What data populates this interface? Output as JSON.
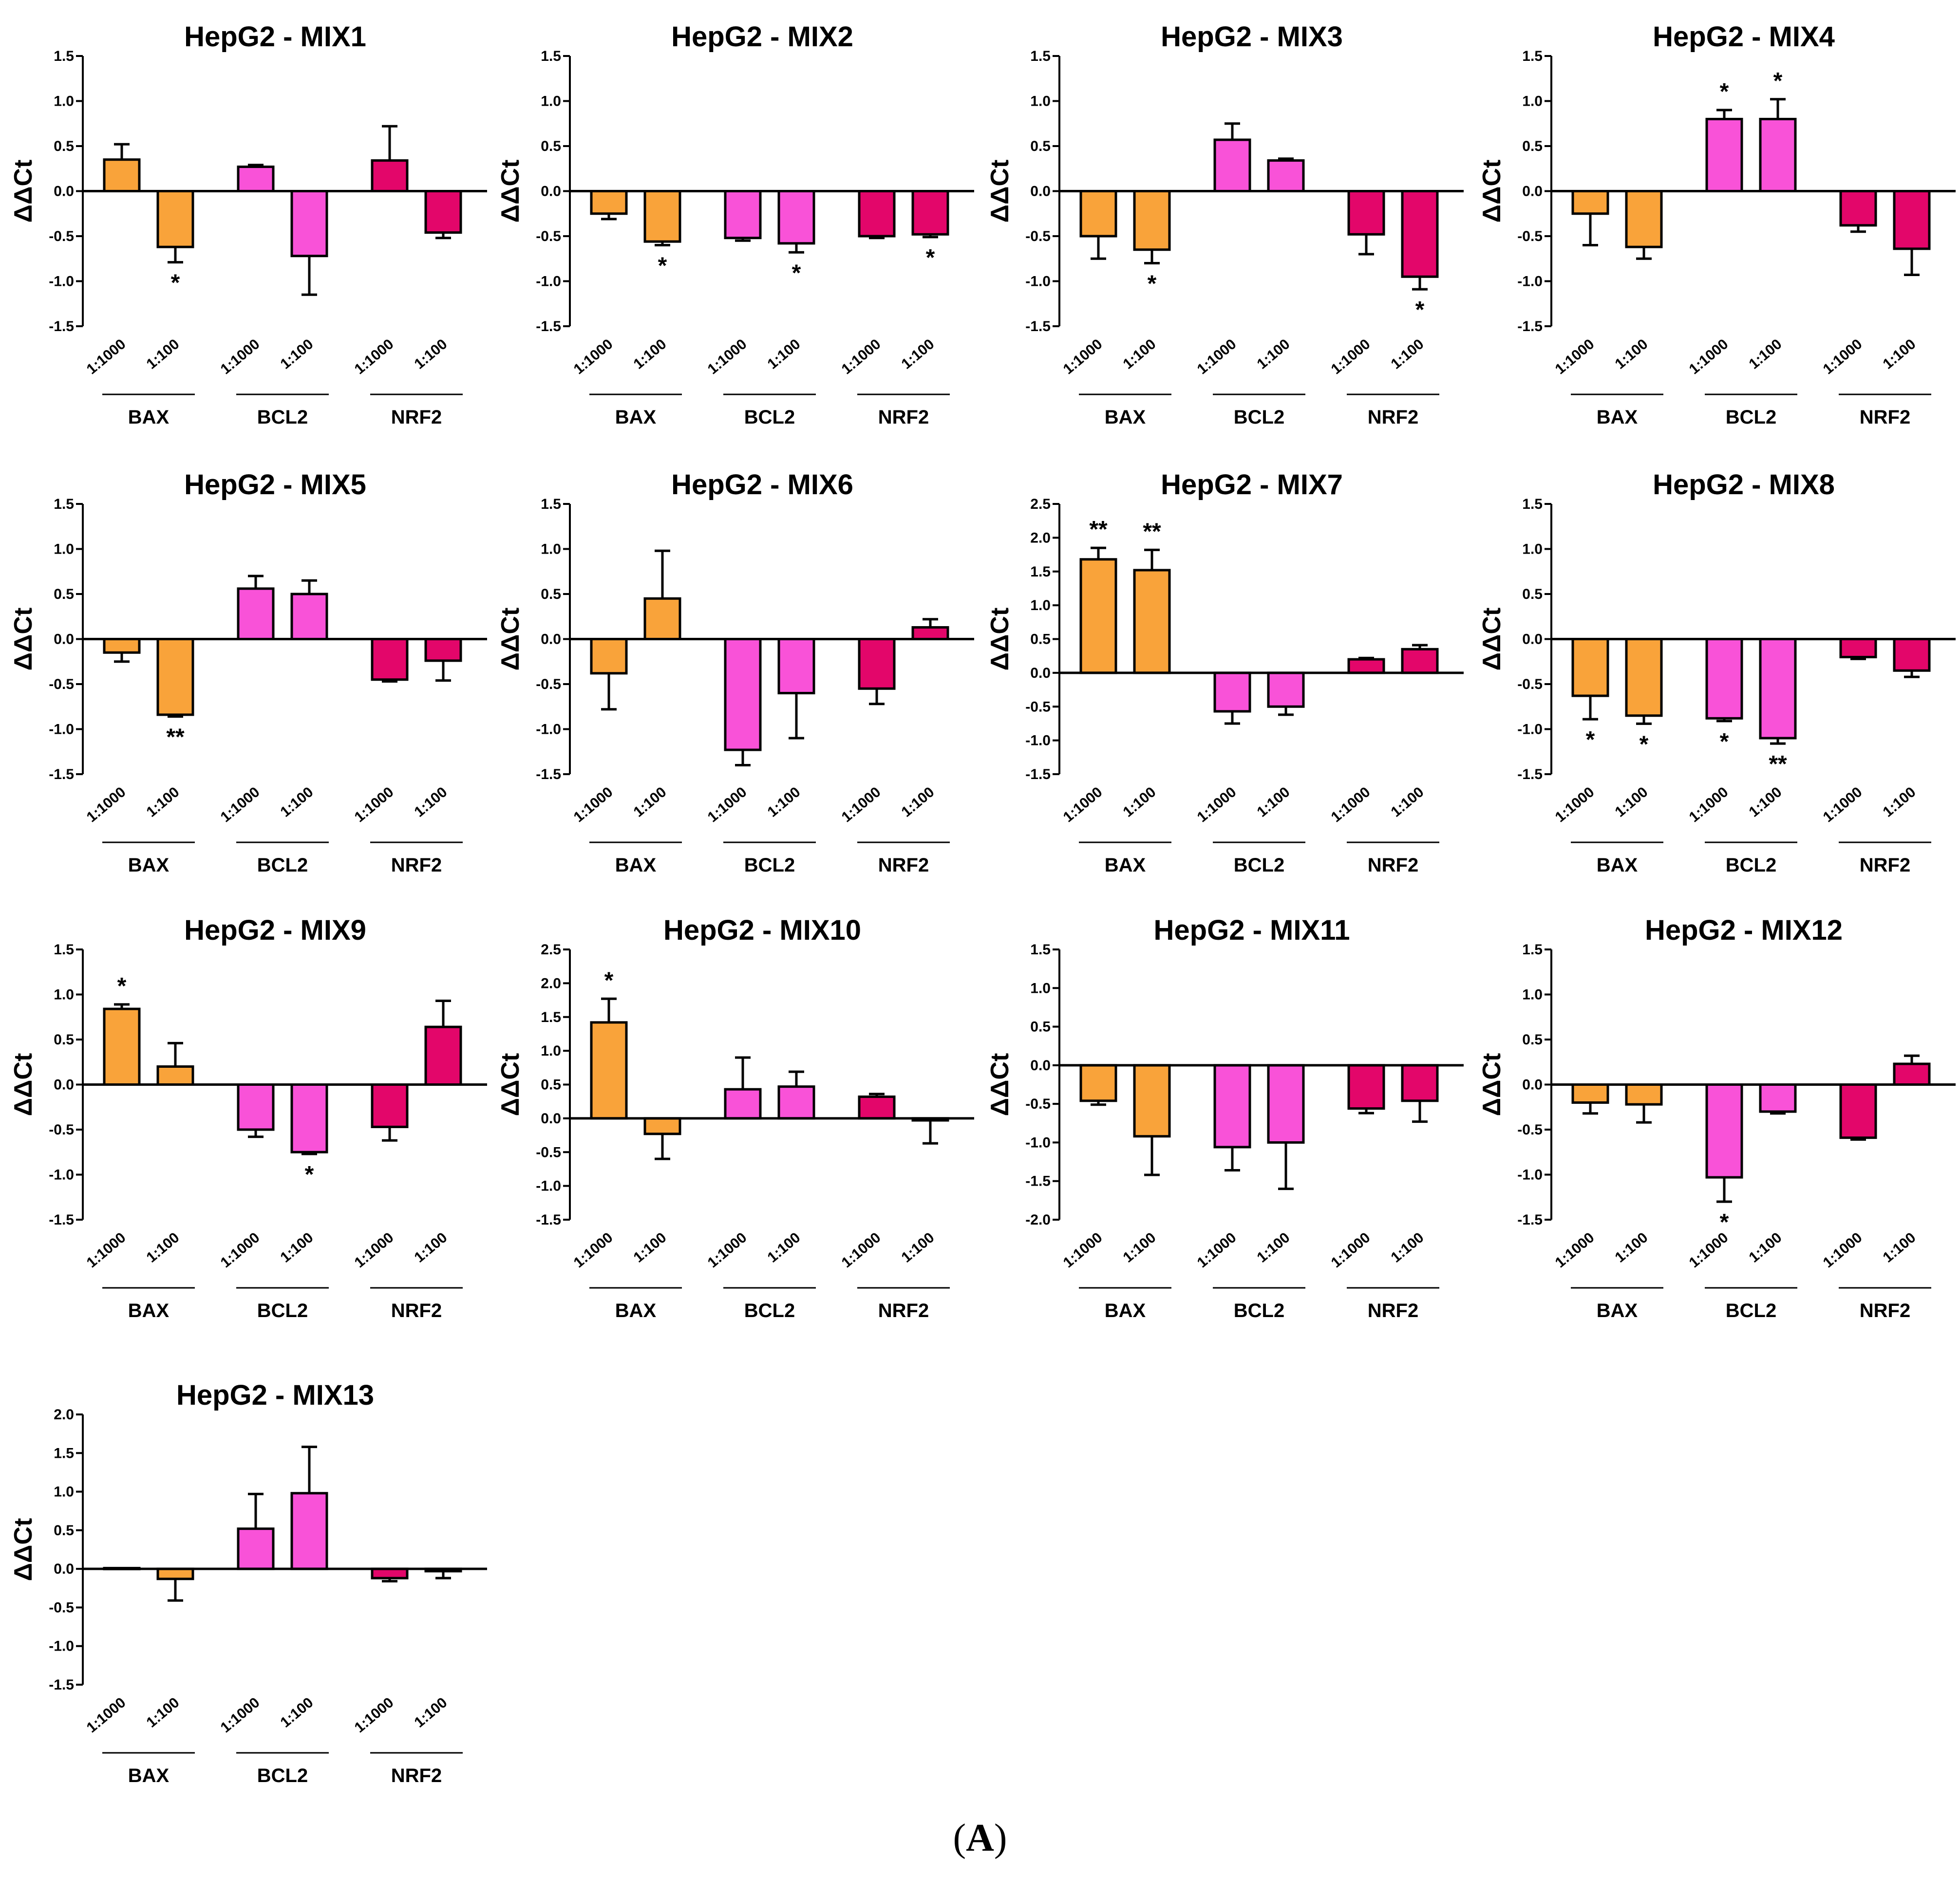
{
  "figure": {
    "panel_letter": "A",
    "panel_open": "(",
    "panel_close": ")"
  },
  "colors": {
    "BAX": "#f9a33a",
    "BCL2": "#f952d8",
    "NRF2": "#e3066a",
    "axis": "#000000"
  },
  "chart_data": [
    {
      "type": "bar",
      "title": "HepG2 - MIX1",
      "ylabel": "ΔΔCt",
      "ylim": [
        -1.5,
        1.5
      ],
      "yticks": [
        1.5,
        1.0,
        0.5,
        0.0,
        -0.5,
        -1.0,
        -1.5
      ],
      "groups": [
        "BAX",
        "BCL2",
        "NRF2"
      ],
      "categories": [
        "1:1000",
        "1:100"
      ],
      "bars": [
        {
          "group": "BAX",
          "category": "1:1000",
          "value": 0.35,
          "err": 0.17,
          "sig": ""
        },
        {
          "group": "BAX",
          "category": "1:100",
          "value": -0.62,
          "err": 0.17,
          "sig": "*"
        },
        {
          "group": "BCL2",
          "category": "1:1000",
          "value": 0.27,
          "err": 0.02,
          "sig": ""
        },
        {
          "group": "BCL2",
          "category": "1:100",
          "value": -0.72,
          "err": 0.43,
          "sig": ""
        },
        {
          "group": "NRF2",
          "category": "1:1000",
          "value": 0.34,
          "err": 0.38,
          "sig": ""
        },
        {
          "group": "NRF2",
          "category": "1:100",
          "value": -0.46,
          "err": 0.06,
          "sig": ""
        }
      ]
    },
    {
      "type": "bar",
      "title": "HepG2 - MIX2",
      "ylabel": "ΔΔCt",
      "ylim": [
        -1.5,
        1.5
      ],
      "yticks": [
        1.5,
        1.0,
        0.5,
        0.0,
        -0.5,
        -1.0,
        -1.5
      ],
      "groups": [
        "BAX",
        "BCL2",
        "NRF2"
      ],
      "categories": [
        "1:1000",
        "1:100"
      ],
      "bars": [
        {
          "group": "BAX",
          "category": "1:1000",
          "value": -0.25,
          "err": 0.06,
          "sig": ""
        },
        {
          "group": "BAX",
          "category": "1:100",
          "value": -0.56,
          "err": 0.04,
          "sig": "*"
        },
        {
          "group": "BCL2",
          "category": "1:1000",
          "value": -0.52,
          "err": 0.03,
          "sig": ""
        },
        {
          "group": "BCL2",
          "category": "1:100",
          "value": -0.58,
          "err": 0.1,
          "sig": "*"
        },
        {
          "group": "NRF2",
          "category": "1:1000",
          "value": -0.5,
          "err": 0.02,
          "sig": ""
        },
        {
          "group": "NRF2",
          "category": "1:100",
          "value": -0.48,
          "err": 0.03,
          "sig": "*"
        }
      ]
    },
    {
      "type": "bar",
      "title": "HepG2 - MIX3",
      "ylabel": "ΔΔCt",
      "ylim": [
        -1.5,
        1.5
      ],
      "yticks": [
        1.5,
        1.0,
        0.5,
        0.0,
        -0.5,
        -1.0,
        -1.5
      ],
      "groups": [
        "BAX",
        "BCL2",
        "NRF2"
      ],
      "categories": [
        "1:1000",
        "1:100"
      ],
      "bars": [
        {
          "group": "BAX",
          "category": "1:1000",
          "value": -0.5,
          "err": 0.25,
          "sig": ""
        },
        {
          "group": "BAX",
          "category": "1:100",
          "value": -0.65,
          "err": 0.15,
          "sig": "*"
        },
        {
          "group": "BCL2",
          "category": "1:1000",
          "value": 0.57,
          "err": 0.18,
          "sig": ""
        },
        {
          "group": "BCL2",
          "category": "1:100",
          "value": 0.34,
          "err": 0.02,
          "sig": ""
        },
        {
          "group": "NRF2",
          "category": "1:1000",
          "value": -0.48,
          "err": 0.22,
          "sig": ""
        },
        {
          "group": "NRF2",
          "category": "1:100",
          "value": -0.95,
          "err": 0.14,
          "sig": "*"
        }
      ]
    },
    {
      "type": "bar",
      "title": "HepG2 - MIX4",
      "ylabel": "ΔΔCt",
      "ylim": [
        -1.5,
        1.5
      ],
      "yticks": [
        1.5,
        1.0,
        0.5,
        0.0,
        -0.5,
        -1.0,
        -1.5
      ],
      "groups": [
        "BAX",
        "BCL2",
        "NRF2"
      ],
      "categories": [
        "1:1000",
        "1:100"
      ],
      "bars": [
        {
          "group": "BAX",
          "category": "1:1000",
          "value": -0.25,
          "err": 0.35,
          "sig": ""
        },
        {
          "group": "BAX",
          "category": "1:100",
          "value": -0.62,
          "err": 0.13,
          "sig": ""
        },
        {
          "group": "BCL2",
          "category": "1:1000",
          "value": 0.8,
          "err": 0.1,
          "sig": "*"
        },
        {
          "group": "BCL2",
          "category": "1:100",
          "value": 0.8,
          "err": 0.22,
          "sig": "*"
        },
        {
          "group": "NRF2",
          "category": "1:1000",
          "value": -0.38,
          "err": 0.07,
          "sig": ""
        },
        {
          "group": "NRF2",
          "category": "1:100",
          "value": -0.64,
          "err": 0.29,
          "sig": ""
        }
      ]
    },
    {
      "type": "bar",
      "title": "HepG2 - MIX5",
      "ylabel": "ΔΔCt",
      "ylim": [
        -1.5,
        1.5
      ],
      "yticks": [
        1.5,
        1.0,
        0.5,
        0.0,
        -0.5,
        -1.0,
        -1.5
      ],
      "groups": [
        "BAX",
        "BCL2",
        "NRF2"
      ],
      "categories": [
        "1:1000",
        "1:100"
      ],
      "bars": [
        {
          "group": "BAX",
          "category": "1:1000",
          "value": -0.15,
          "err": 0.1,
          "sig": ""
        },
        {
          "group": "BAX",
          "category": "1:100",
          "value": -0.84,
          "err": 0.02,
          "sig": "**"
        },
        {
          "group": "BCL2",
          "category": "1:1000",
          "value": 0.56,
          "err": 0.14,
          "sig": ""
        },
        {
          "group": "BCL2",
          "category": "1:100",
          "value": 0.5,
          "err": 0.15,
          "sig": ""
        },
        {
          "group": "NRF2",
          "category": "1:1000",
          "value": -0.45,
          "err": 0.02,
          "sig": ""
        },
        {
          "group": "NRF2",
          "category": "1:100",
          "value": -0.24,
          "err": 0.22,
          "sig": ""
        }
      ]
    },
    {
      "type": "bar",
      "title": "HepG2 - MIX6",
      "ylabel": "ΔΔCt",
      "ylim": [
        -1.5,
        1.5
      ],
      "yticks": [
        1.5,
        1.0,
        0.5,
        0.0,
        -0.5,
        -1.0,
        -1.5
      ],
      "groups": [
        "BAX",
        "BCL2",
        "NRF2"
      ],
      "categories": [
        "1:1000",
        "1:100"
      ],
      "bars": [
        {
          "group": "BAX",
          "category": "1:1000",
          "value": -0.38,
          "err": 0.4,
          "sig": ""
        },
        {
          "group": "BAX",
          "category": "1:100",
          "value": 0.45,
          "err": 0.53,
          "sig": ""
        },
        {
          "group": "BCL2",
          "category": "1:1000",
          "value": -1.23,
          "err": 0.17,
          "sig": ""
        },
        {
          "group": "BCL2",
          "category": "1:100",
          "value": -0.6,
          "err": 0.5,
          "sig": ""
        },
        {
          "group": "NRF2",
          "category": "1:1000",
          "value": -0.55,
          "err": 0.17,
          "sig": ""
        },
        {
          "group": "NRF2",
          "category": "1:100",
          "value": 0.13,
          "err": 0.09,
          "sig": ""
        }
      ]
    },
    {
      "type": "bar",
      "title": "HepG2 - MIX7",
      "ylabel": "ΔΔCt",
      "ylim": [
        -1.5,
        2.5
      ],
      "yticks": [
        2.5,
        2.0,
        1.5,
        1.0,
        0.5,
        0.0,
        -0.5,
        -1.0,
        -1.5
      ],
      "groups": [
        "BAX",
        "BCL2",
        "NRF2"
      ],
      "categories": [
        "1:1000",
        "1:100"
      ],
      "bars": [
        {
          "group": "BAX",
          "category": "1:1000",
          "value": 1.68,
          "err": 0.17,
          "sig": "**"
        },
        {
          "group": "BAX",
          "category": "1:100",
          "value": 1.52,
          "err": 0.3,
          "sig": "**"
        },
        {
          "group": "BCL2",
          "category": "1:1000",
          "value": -0.57,
          "err": 0.18,
          "sig": ""
        },
        {
          "group": "BCL2",
          "category": "1:100",
          "value": -0.5,
          "err": 0.12,
          "sig": ""
        },
        {
          "group": "NRF2",
          "category": "1:1000",
          "value": 0.2,
          "err": 0.02,
          "sig": ""
        },
        {
          "group": "NRF2",
          "category": "1:100",
          "value": 0.35,
          "err": 0.06,
          "sig": ""
        }
      ]
    },
    {
      "type": "bar",
      "title": "HepG2 - MIX8",
      "ylabel": "ΔΔCt",
      "ylim": [
        -1.5,
        1.5
      ],
      "yticks": [
        1.5,
        1.0,
        0.5,
        0.0,
        -0.5,
        -1.0,
        -1.5
      ],
      "groups": [
        "BAX",
        "BCL2",
        "NRF2"
      ],
      "categories": [
        "1:1000",
        "1:100"
      ],
      "bars": [
        {
          "group": "BAX",
          "category": "1:1000",
          "value": -0.63,
          "err": 0.26,
          "sig": "*"
        },
        {
          "group": "BAX",
          "category": "1:100",
          "value": -0.85,
          "err": 0.09,
          "sig": "*"
        },
        {
          "group": "BCL2",
          "category": "1:1000",
          "value": -0.88,
          "err": 0.03,
          "sig": "*"
        },
        {
          "group": "BCL2",
          "category": "1:100",
          "value": -1.1,
          "err": 0.06,
          "sig": "**"
        },
        {
          "group": "NRF2",
          "category": "1:1000",
          "value": -0.2,
          "err": 0.02,
          "sig": ""
        },
        {
          "group": "NRF2",
          "category": "1:100",
          "value": -0.35,
          "err": 0.07,
          "sig": ""
        }
      ]
    },
    {
      "type": "bar",
      "title": "HepG2 - MIX9",
      "ylabel": "ΔΔCt",
      "ylim": [
        -1.5,
        1.5
      ],
      "yticks": [
        1.5,
        1.0,
        0.5,
        0.0,
        -0.5,
        -1.0,
        -1.5
      ],
      "groups": [
        "BAX",
        "BCL2",
        "NRF2"
      ],
      "categories": [
        "1:1000",
        "1:100"
      ],
      "bars": [
        {
          "group": "BAX",
          "category": "1:1000",
          "value": 0.84,
          "err": 0.05,
          "sig": "*"
        },
        {
          "group": "BAX",
          "category": "1:100",
          "value": 0.2,
          "err": 0.26,
          "sig": ""
        },
        {
          "group": "BCL2",
          "category": "1:1000",
          "value": -0.5,
          "err": 0.08,
          "sig": ""
        },
        {
          "group": "BCL2",
          "category": "1:100",
          "value": -0.75,
          "err": 0.02,
          "sig": "*"
        },
        {
          "group": "NRF2",
          "category": "1:1000",
          "value": -0.47,
          "err": 0.15,
          "sig": ""
        },
        {
          "group": "NRF2",
          "category": "1:100",
          "value": 0.64,
          "err": 0.29,
          "sig": ""
        }
      ]
    },
    {
      "type": "bar",
      "title": "HepG2 - MIX10",
      "ylabel": "ΔΔCt",
      "ylim": [
        -1.5,
        2.5
      ],
      "yticks": [
        2.5,
        2.0,
        1.5,
        1.0,
        0.5,
        0.0,
        -0.5,
        -1.0,
        -1.5
      ],
      "groups": [
        "BAX",
        "BCL2",
        "NRF2"
      ],
      "categories": [
        "1:1000",
        "1:100"
      ],
      "bars": [
        {
          "group": "BAX",
          "category": "1:1000",
          "value": 1.42,
          "err": 0.35,
          "sig": "*"
        },
        {
          "group": "BAX",
          "category": "1:100",
          "value": -0.23,
          "err": 0.37,
          "sig": ""
        },
        {
          "group": "BCL2",
          "category": "1:1000",
          "value": 0.43,
          "err": 0.47,
          "sig": ""
        },
        {
          "group": "BCL2",
          "category": "1:100",
          "value": 0.47,
          "err": 0.22,
          "sig": ""
        },
        {
          "group": "NRF2",
          "category": "1:1000",
          "value": 0.32,
          "err": 0.04,
          "sig": ""
        },
        {
          "group": "NRF2",
          "category": "1:100",
          "value": -0.03,
          "err": 0.34,
          "sig": ""
        }
      ]
    },
    {
      "type": "bar",
      "title": "HepG2 - MIX11",
      "ylabel": "ΔΔCt",
      "ylim": [
        -2.0,
        1.5
      ],
      "yticks": [
        1.5,
        1.0,
        0.5,
        0.0,
        -0.5,
        -1.0,
        -1.5,
        -2.0
      ],
      "groups": [
        "BAX",
        "BCL2",
        "NRF2"
      ],
      "categories": [
        "1:1000",
        "1:100"
      ],
      "bars": [
        {
          "group": "BAX",
          "category": "1:1000",
          "value": -0.46,
          "err": 0.05,
          "sig": ""
        },
        {
          "group": "BAX",
          "category": "1:100",
          "value": -0.92,
          "err": 0.5,
          "sig": ""
        },
        {
          "group": "BCL2",
          "category": "1:1000",
          "value": -1.06,
          "err": 0.3,
          "sig": ""
        },
        {
          "group": "BCL2",
          "category": "1:100",
          "value": -1.0,
          "err": 0.6,
          "sig": ""
        },
        {
          "group": "NRF2",
          "category": "1:1000",
          "value": -0.56,
          "err": 0.06,
          "sig": ""
        },
        {
          "group": "NRF2",
          "category": "1:100",
          "value": -0.46,
          "err": 0.27,
          "sig": ""
        }
      ]
    },
    {
      "type": "bar",
      "title": "HepG2 - MIX12",
      "ylabel": "ΔΔCt",
      "ylim": [
        -1.5,
        1.5
      ],
      "yticks": [
        1.5,
        1.0,
        0.5,
        0.0,
        -0.5,
        -1.0,
        -1.5
      ],
      "groups": [
        "BAX",
        "BCL2",
        "NRF2"
      ],
      "categories": [
        "1:1000",
        "1:100"
      ],
      "bars": [
        {
          "group": "BAX",
          "category": "1:1000",
          "value": -0.2,
          "err": 0.12,
          "sig": ""
        },
        {
          "group": "BAX",
          "category": "1:100",
          "value": -0.22,
          "err": 0.2,
          "sig": ""
        },
        {
          "group": "BCL2",
          "category": "1:1000",
          "value": -1.03,
          "err": 0.27,
          "sig": "*"
        },
        {
          "group": "BCL2",
          "category": "1:100",
          "value": -0.3,
          "err": 0.02,
          "sig": ""
        },
        {
          "group": "NRF2",
          "category": "1:1000",
          "value": -0.59,
          "err": 0.02,
          "sig": ""
        },
        {
          "group": "NRF2",
          "category": "1:100",
          "value": 0.23,
          "err": 0.09,
          "sig": ""
        }
      ]
    },
    {
      "type": "bar",
      "title": "HepG2 - MIX13",
      "ylabel": "ΔΔCt",
      "ylim": [
        -1.5,
        2.0
      ],
      "yticks": [
        2.0,
        1.5,
        1.0,
        0.5,
        0.0,
        -0.5,
        -1.0,
        -1.5
      ],
      "groups": [
        "BAX",
        "BCL2",
        "NRF2"
      ],
      "categories": [
        "1:1000",
        "1:100"
      ],
      "bars": [
        {
          "group": "BAX",
          "category": "1:1000",
          "value": 0.01,
          "err": 0.0,
          "sig": ""
        },
        {
          "group": "BAX",
          "category": "1:100",
          "value": -0.13,
          "err": 0.28,
          "sig": ""
        },
        {
          "group": "BCL2",
          "category": "1:1000",
          "value": 0.52,
          "err": 0.45,
          "sig": ""
        },
        {
          "group": "BCL2",
          "category": "1:100",
          "value": 0.98,
          "err": 0.6,
          "sig": ""
        },
        {
          "group": "NRF2",
          "category": "1:1000",
          "value": -0.12,
          "err": 0.04,
          "sig": ""
        },
        {
          "group": "NRF2",
          "category": "1:100",
          "value": -0.03,
          "err": 0.09,
          "sig": ""
        }
      ]
    }
  ]
}
